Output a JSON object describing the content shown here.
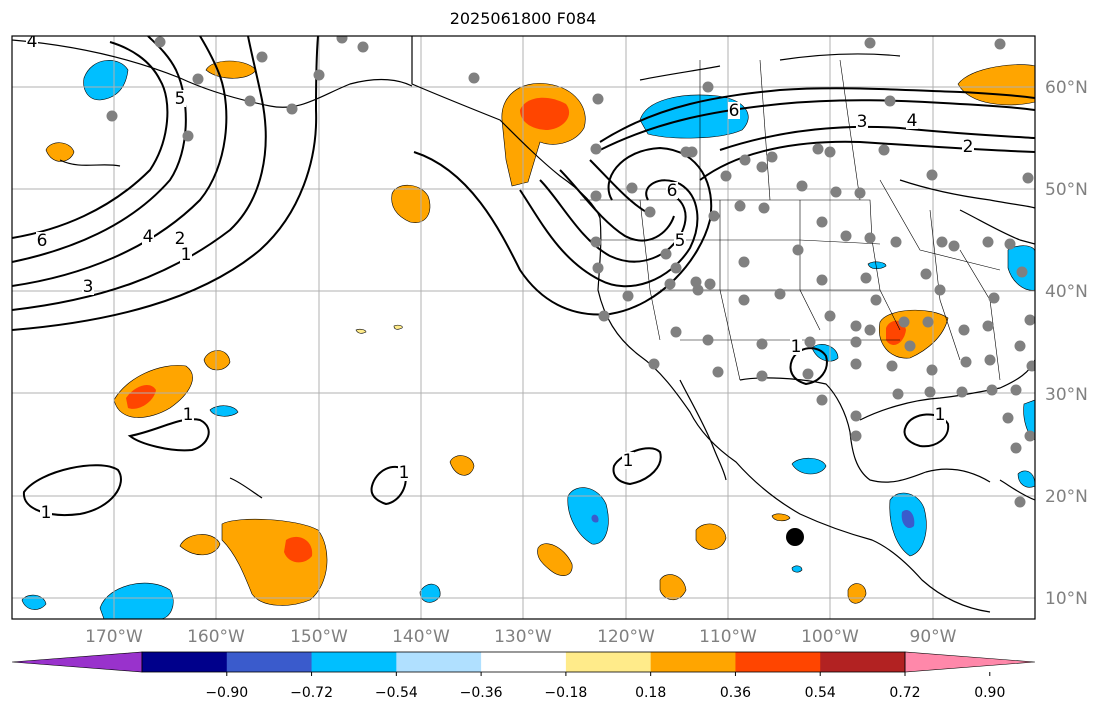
{
  "title": "2025061800 F084",
  "lat_labels": [
    "60°N",
    "50°N",
    "40°N",
    "30°N",
    "20°N",
    "10°N"
  ],
  "lon_labels": [
    "170°W",
    "160°W",
    "150°W",
    "140°W",
    "130°W",
    "120°W",
    "110°W",
    "100°W",
    "90°W"
  ],
  "colorbar": {
    "tick_labels": [
      "−0.90",
      "−0.72",
      "−0.54",
      "−0.36",
      "−0.18",
      "0.18",
      "0.36",
      "0.54",
      "0.72",
      "0.90"
    ],
    "colors": [
      "#9932cc",
      "#00008b",
      "#3a5bcc",
      "#00bfff",
      "#b0e0ff",
      "#ffffff",
      "#ffeb8a",
      "#ffa500",
      "#ff4500",
      "#b22222",
      "#ff88aa"
    ]
  },
  "contour_labels": [
    "4",
    "5",
    "6",
    "4",
    "2",
    "1",
    "3",
    "6",
    "5",
    "3",
    "4",
    "2",
    "6",
    "1",
    "1",
    "1",
    "1",
    "1",
    "1"
  ],
  "colors": {
    "land_line": "#000000",
    "grid": "#b0b0b0",
    "station": "#808080",
    "marker": "#000000"
  }
}
